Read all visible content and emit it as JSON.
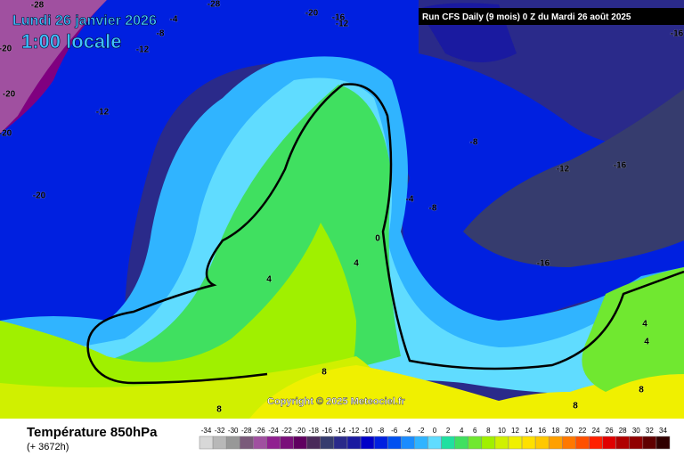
{
  "header": {
    "date": "Lundi 26 janvier 2026",
    "time": "1:00 locale",
    "run": "Run CFS Daily (9 mois) 0 Z du Mardi 26 août 2025"
  },
  "copyright": "Copyright © 2025 Meteociel.fr",
  "footer": {
    "title": "Température 850hPa",
    "lead": "(+ 3672h)"
  },
  "scale": {
    "labels": [
      -34,
      -32,
      -30,
      -28,
      -26,
      -24,
      -22,
      -20,
      -18,
      -16,
      -14,
      -12,
      -10,
      -8,
      -6,
      -4,
      -2,
      0,
      2,
      4,
      6,
      8,
      10,
      12,
      14,
      16,
      18,
      20,
      22,
      24,
      26,
      28,
      30,
      32,
      34
    ],
    "colors": [
      "#d8d8d8",
      "#b8b8b8",
      "#989898",
      "#7a5a7a",
      "#a050a0",
      "#902090",
      "#7a107a",
      "#600060",
      "#4a2a5a",
      "#363c6e",
      "#2a2a8a",
      "#1a1aa0",
      "#0000c8",
      "#0020e0",
      "#0050f0",
      "#1a8cff",
      "#30b4ff",
      "#60dcff",
      "#20e0a0",
      "#40e060",
      "#70e830",
      "#a0f000",
      "#d0f000",
      "#f0f000",
      "#ffe000",
      "#ffc800",
      "#ffa000",
      "#ff7800",
      "#ff5000",
      "#ff2000",
      "#e00000",
      "#b00000",
      "#900000",
      "#600000",
      "#300000"
    ]
  },
  "map_labels": [
    -28,
    -28,
    -4,
    -8,
    -12,
    -20,
    -16,
    -12,
    -12,
    -20,
    -20,
    -20,
    -20,
    -8,
    -12,
    -16,
    -16,
    -4,
    -8,
    0,
    4,
    4,
    -16,
    4,
    4,
    8,
    8,
    8,
    8
  ]
}
